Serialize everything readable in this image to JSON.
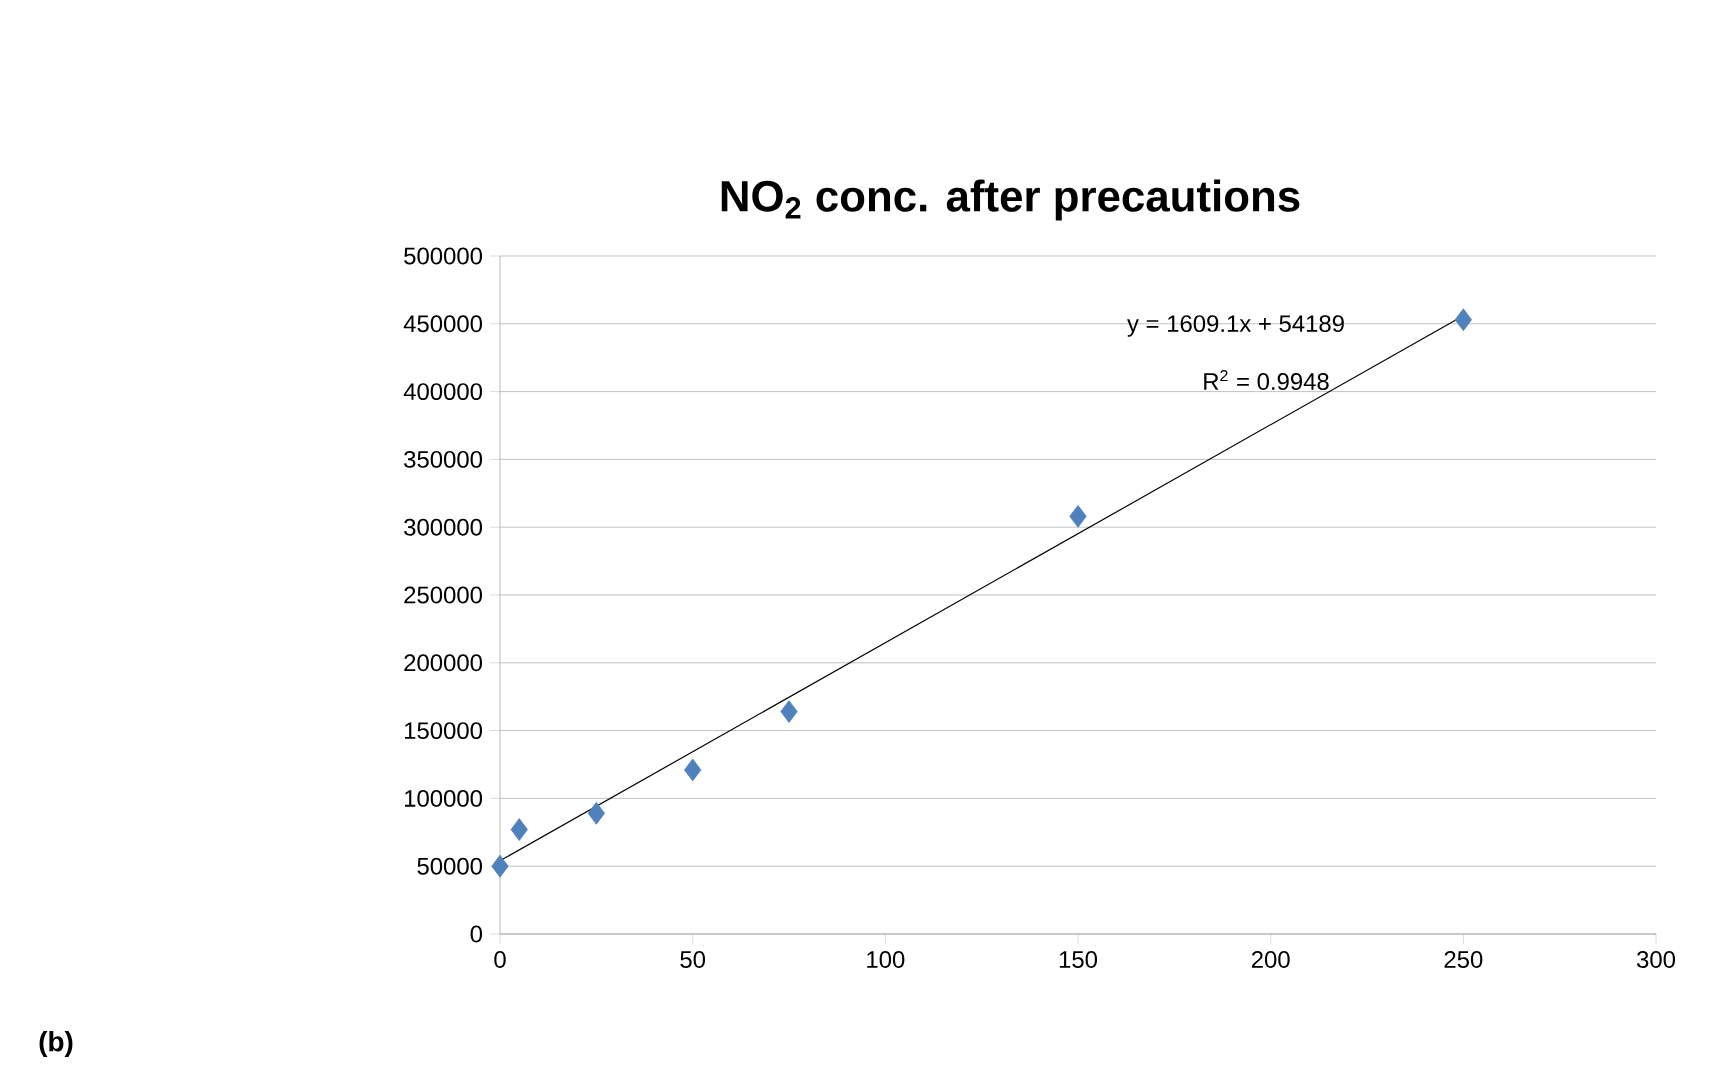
{
  "chart_data": {
    "type": "scatter",
    "title": "NO$_{2}$ conc. after precautions",
    "annotations": [
      "y = 1609.1x + 54189",
      "R$^{2}$ = 0.9948",
      "(b)"
    ],
    "series": [
      {
        "color": "#4f81bd",
        "marker": "diamond",
        "x": [
          0,
          5,
          25,
          50,
          75,
          150,
          250
        ],
        "values": [
          50000,
          77000,
          89000,
          121000,
          164000,
          308000,
          453000
        ]
      },
      {
        "type": "line",
        "color": "#000000",
        "marker": "none",
        "x": [
          0,
          250
        ],
        "values": [
          54000,
          456000
        ]
      }
    ],
    "xlim": [
      0,
      300
    ],
    "ylim": [
      0,
      500000
    ],
    "xticks": [
      0,
      50,
      100,
      150,
      200,
      250,
      300
    ],
    "yticks": [
      0,
      50000,
      100000,
      150000,
      200000,
      250000,
      300000,
      350000,
      400000,
      450000,
      500000
    ],
    "grid": "y"
  }
}
